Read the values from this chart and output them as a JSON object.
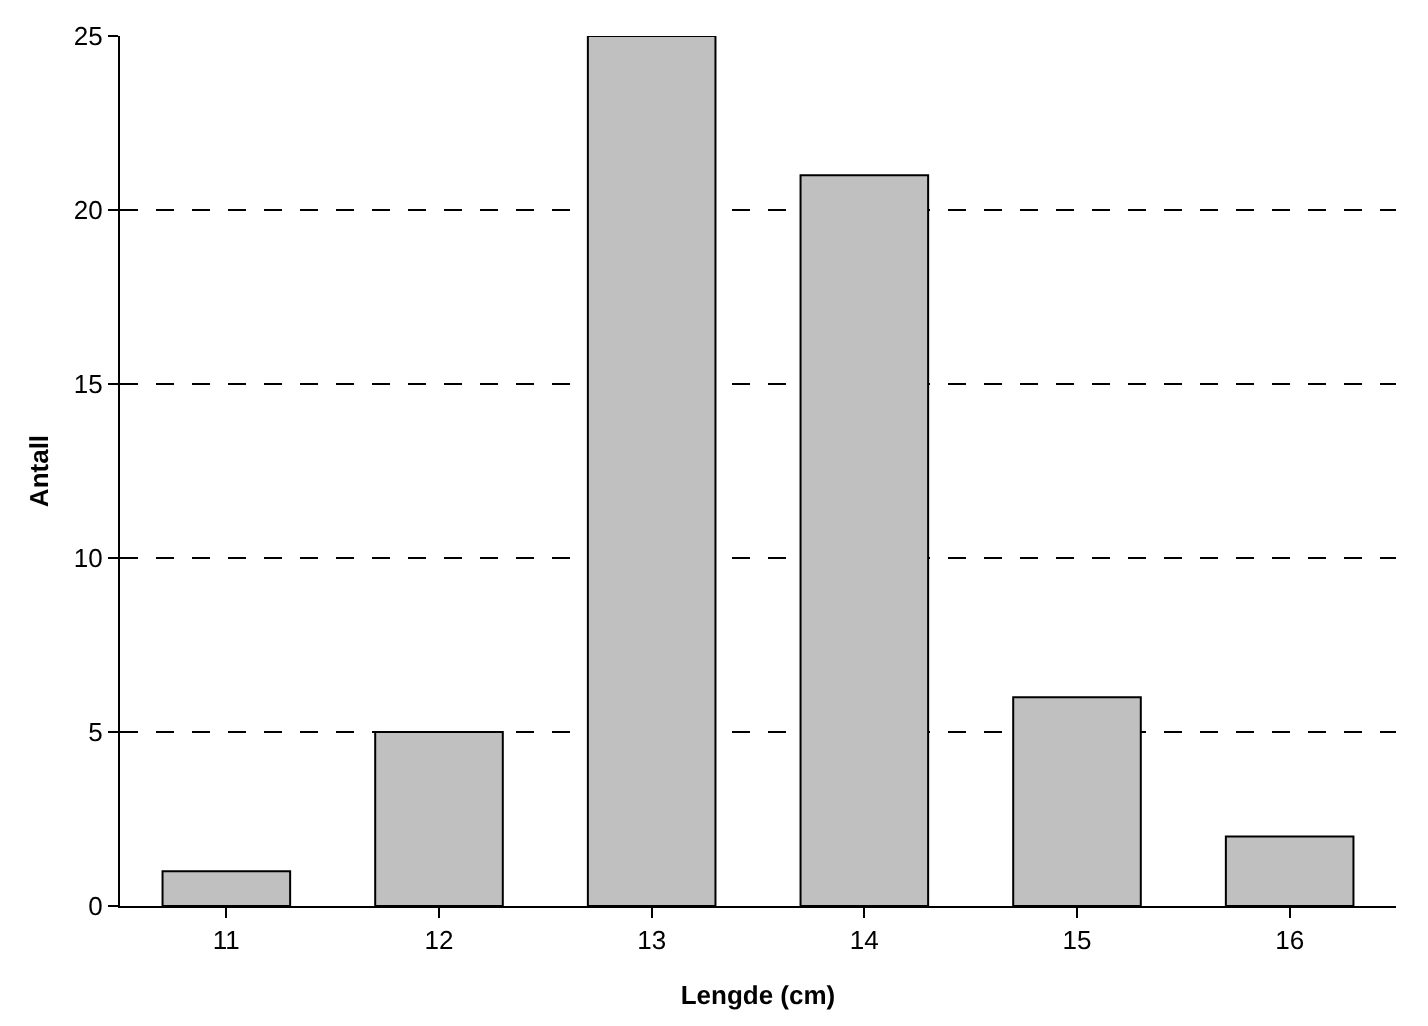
{
  "chart_data": {
    "type": "bar",
    "xlabel": "Lengde (cm)",
    "ylabel": "Antall",
    "categories": [
      "11",
      "12",
      "13",
      "14",
      "15",
      "16"
    ],
    "values": [
      1,
      5,
      25,
      21,
      6,
      2
    ],
    "color": "#c0c0c0",
    "ylim": [
      0,
      25
    ],
    "yticks": [
      0,
      5,
      10,
      15,
      20,
      25
    ],
    "grid": "y"
  }
}
